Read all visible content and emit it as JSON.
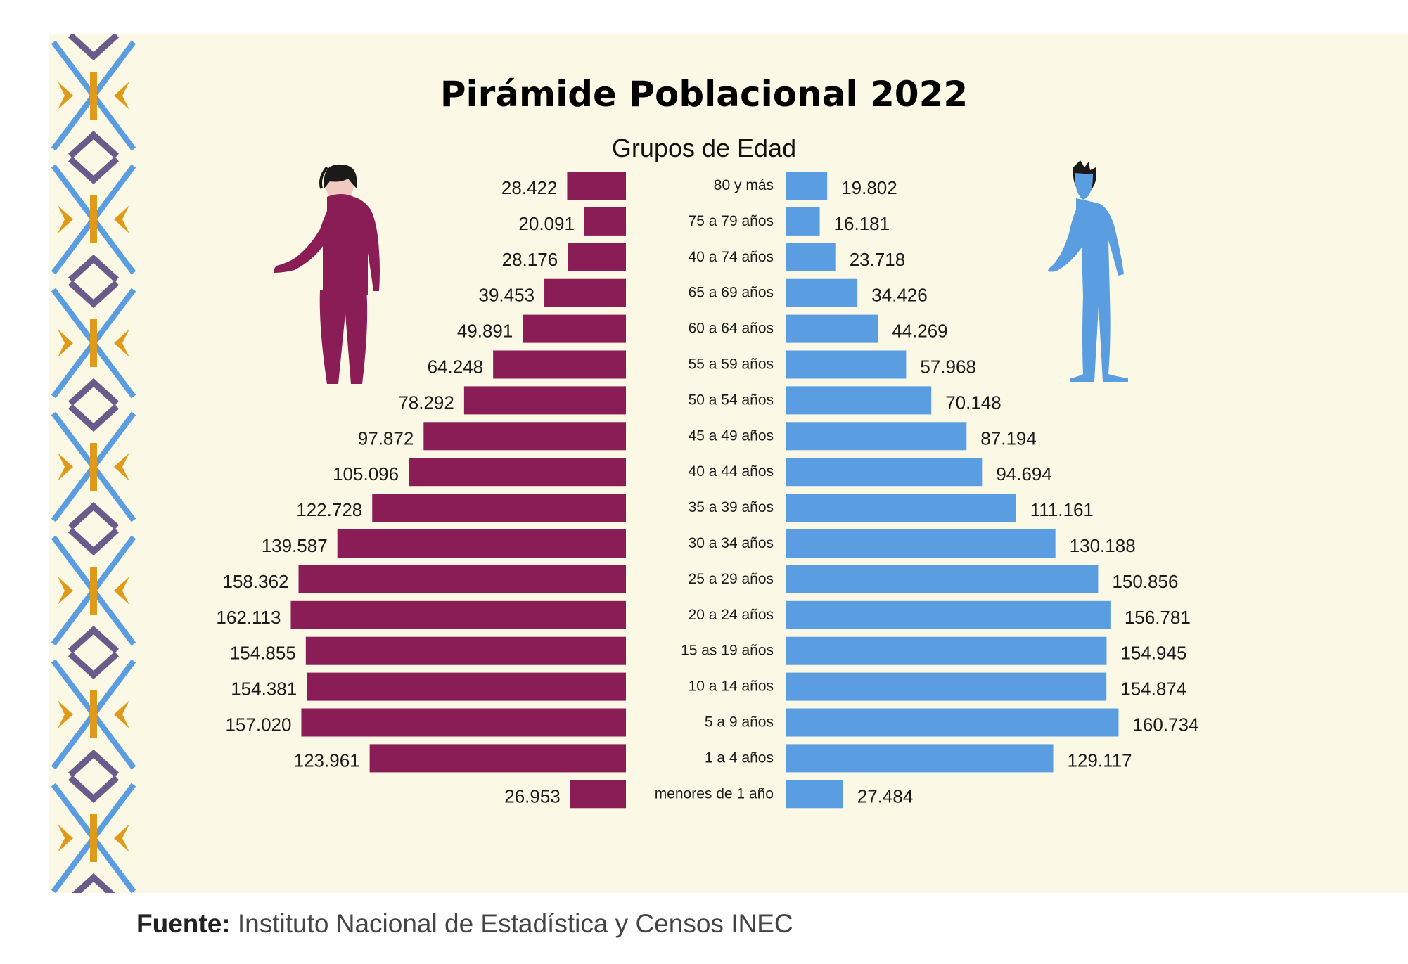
{
  "title": "Pirámide Poblacional 2022",
  "subtitle": "Grupos de Edad",
  "source": {
    "label": "Fuente:",
    "text": "Instituto Nacional de Estadística y Censos INEC"
  },
  "colors": {
    "female": "#8a1c56",
    "male": "#5a9de0",
    "background": "#fbf9e6",
    "pattern_blue": "#5a9de0",
    "pattern_purple": "#6b5b8a",
    "pattern_orange": "#e09a1a"
  },
  "chart_data": {
    "type": "bar",
    "orientation": "horizontal-population-pyramid",
    "categories": [
      "80 y más",
      "75 a 79 años",
      "40 a 74 años",
      "65 a 69 años",
      "60 a 64 años",
      "55 a 59 años",
      "50 a 54 años",
      "45 a 49 años",
      "40 a 44 años",
      "35 a 39 años",
      "30 a 34 años",
      "25 a 29 años",
      "20 a 24 años",
      "15 as 19 años",
      "10 a 14 años",
      "5 a 9 años",
      "1 a 4 años",
      "menores de 1 año"
    ],
    "series": [
      {
        "side": "left",
        "values": [
          28422,
          20091,
          28176,
          39453,
          49891,
          64248,
          78292,
          97872,
          105096,
          122728,
          139587,
          158362,
          162113,
          154855,
          154381,
          157020,
          123961,
          26953
        ],
        "labels": [
          "28.422",
          "20.091",
          "28.176",
          "39.453",
          "49.891",
          "64.248",
          "78.292",
          "97.872",
          "105.096",
          "122.728",
          "139.587",
          "158.362",
          "162.113",
          "154.855",
          "154.381",
          "157.020",
          "123.961",
          "26.953"
        ]
      },
      {
        "side": "right",
        "values": [
          19802,
          16181,
          23718,
          34426,
          44269,
          57968,
          70148,
          87194,
          94694,
          111161,
          130188,
          150856,
          156781,
          154945,
          154874,
          160734,
          129117,
          27484
        ],
        "labels": [
          "19.802",
          "16.181",
          "23.718",
          "34.426",
          "44.269",
          "57.968",
          "70.148",
          "87.194",
          "94.694",
          "111.161",
          "130.188",
          "150.856",
          "156.781",
          "154.945",
          "154.874",
          "160.734",
          "129.117",
          "27.484"
        ]
      }
    ],
    "xlim": [
      0,
      165000
    ],
    "grid": false,
    "legend": "none"
  }
}
